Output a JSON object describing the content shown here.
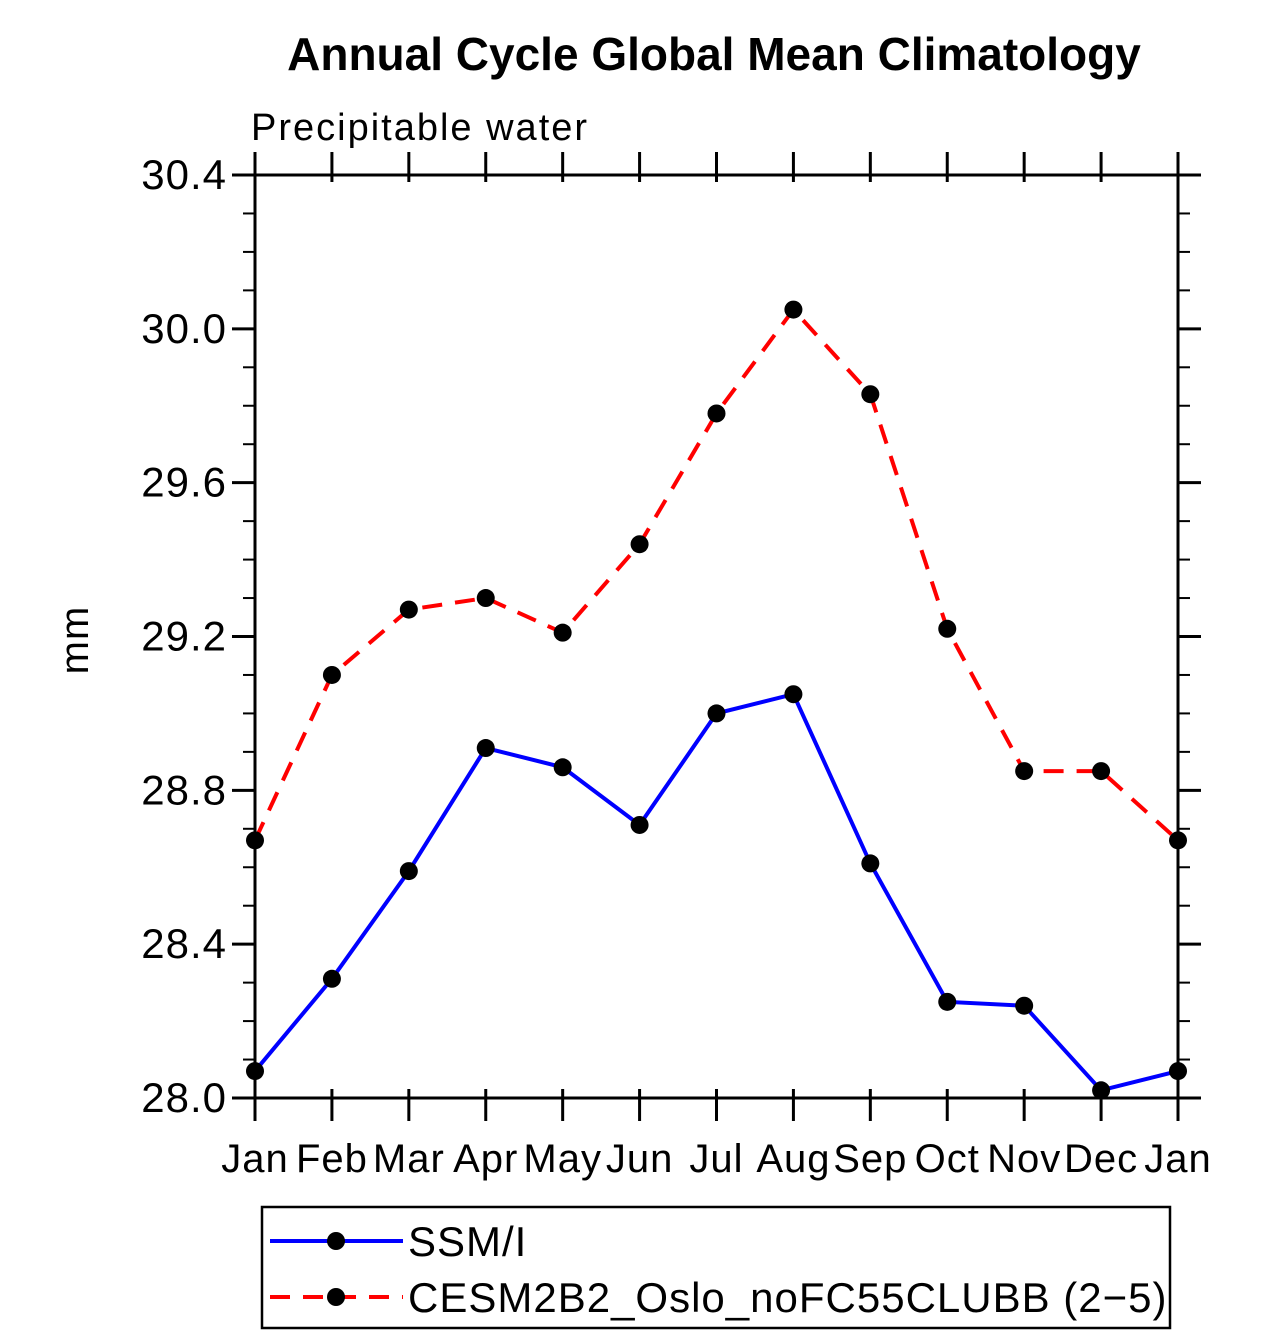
{
  "chart_data": {
    "type": "line",
    "title": "Annual Cycle Global Mean Climatology",
    "subtitle": "Precipitable water",
    "ylabel": "mm",
    "xlabel": "",
    "categories": [
      "Jan",
      "Feb",
      "Mar",
      "Apr",
      "May",
      "Jun",
      "Jul",
      "Aug",
      "Sep",
      "Oct",
      "Nov",
      "Dec",
      "Jan"
    ],
    "ylim": [
      28.0,
      30.4
    ],
    "ytick_major": [
      28.0,
      28.4,
      28.8,
      29.2,
      29.6,
      30.0,
      30.4
    ],
    "ytick_major_labels": [
      "28.0",
      "28.4",
      "28.8",
      "29.2",
      "29.6",
      "30.0",
      "30.4"
    ],
    "ytick_minor_step": 0.1,
    "grid": false,
    "legend_position": "bottom-left-box",
    "axis_color": "#000000",
    "marker_color": "#000000",
    "series": [
      {
        "name": "SSM/I",
        "color": "#0000FF",
        "line_style": "solid",
        "marker": "circle",
        "values": [
          28.07,
          28.31,
          28.59,
          28.91,
          28.86,
          28.71,
          29.0,
          29.05,
          28.61,
          28.25,
          28.24,
          28.02,
          28.07
        ]
      },
      {
        "name": "CESM2B2_Oslo_noFC55CLUBB (2−5)",
        "color": "#FF0000",
        "line_style": "dashed",
        "marker": "circle",
        "values": [
          28.67,
          29.1,
          29.27,
          29.3,
          29.21,
          29.44,
          29.78,
          30.05,
          29.83,
          29.22,
          28.85,
          28.85,
          28.67
        ]
      }
    ]
  }
}
